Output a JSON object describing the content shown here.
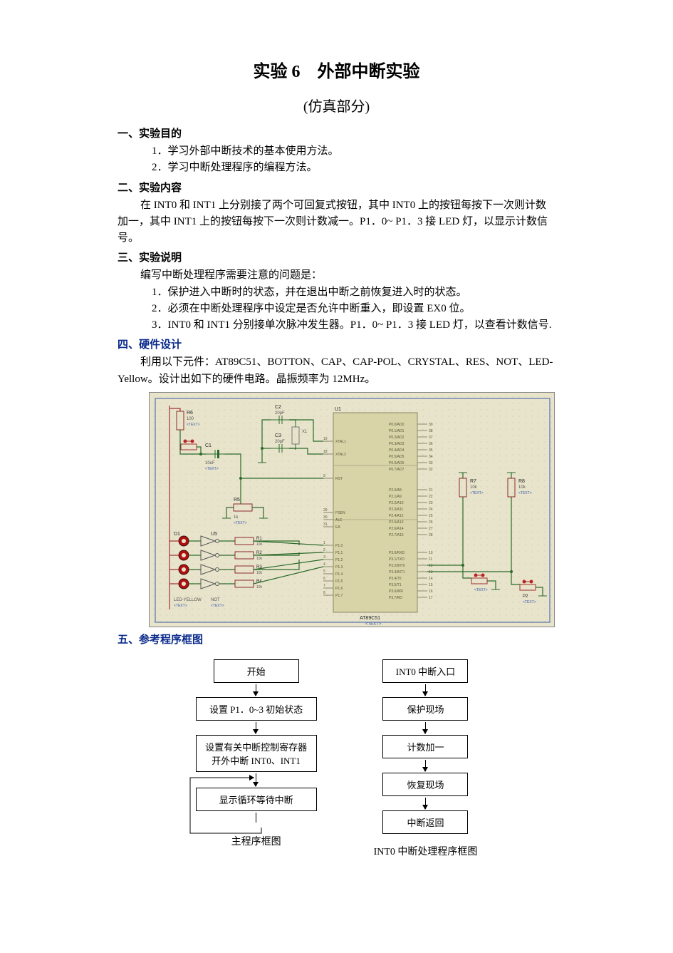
{
  "title": "实验 6　外部中断实验",
  "subtitle": "(仿真部分)",
  "sec1_head": "一、实验目的",
  "sec1_items": [
    "1．学习外部中断技术的基本使用方法。",
    "2．学习中断处理程序的编程方法。"
  ],
  "sec2_head": "二、实验内容",
  "sec2_body": "在 INT0 和 INT1 上分别接了两个可回复式按钮，其中 INT0 上的按钮每按下一次则计数加一，其中 INT1 上的按钮每按下一次则计数减一。P1．0~ P1．3 接 LED 灯，以显示计数信号。",
  "sec3_head": "三、实验说明",
  "sec3_lead": "编写中断处理程序需要注意的问题是：",
  "sec3_items": [
    "1．保护进入中断时的状态，并在退出中断之前恢复进入时的状态。",
    "2．必须在中断处理程序中设定是否允许中断重入，即设置 EX0 位。",
    "3．INT0 和 INT1 分别接单次脉冲发生器。P1．0~ P1．3 接 LED 灯，以查看计数信号."
  ],
  "sec4_head": "四、硬件设计",
  "sec4_body": "利用以下元件：AT89C51、BOTTON、CAP、CAP-POL、CRYSTAL、RES、NOT、LED-Yellow。设计出如下的硬件电路。晶振频率为 12MHz。",
  "sec5_head": "五、参考程序框图",
  "circuit": {
    "type": "schematic",
    "background_color": "#e8e4cc",
    "grid_dot_color": "#b8b49c",
    "wire_color": "#2a6a2a",
    "chip_color": "#d8d4a8",
    "chip_border": "#888866",
    "pin_text_color": "#5a5838",
    "ref_text_color": "#222222",
    "led_color": "#b01010",
    "button_color": "#c42020",
    "chip_label": "AT89C51",
    "u1_label": "U1",
    "crystal_label": "X1",
    "left_pins": [
      "XTAL1",
      "XTAL2",
      "RST",
      "PSEN",
      "ALE",
      "EA",
      "P1.0",
      "P1.1",
      "P1.2",
      "P1.3",
      "P1.4",
      "P1.5",
      "P1.6",
      "P1.7"
    ],
    "left_pin_nums": [
      "19",
      "18",
      "9",
      "29",
      "30",
      "31",
      "1",
      "2",
      "3",
      "4",
      "5",
      "6",
      "7",
      "8"
    ],
    "right_pins_top": [
      "P0.0/AD0",
      "P0.1/AD1",
      "P0.2/AD2",
      "P0.3/AD3",
      "P0.4/AD4",
      "P0.5/AD5",
      "P0.6/AD6",
      "P0.7/AD7"
    ],
    "right_nums_top": [
      "39",
      "38",
      "37",
      "36",
      "35",
      "34",
      "33",
      "32"
    ],
    "right_pins_mid": [
      "P2.0/A8",
      "P2.1/A9",
      "P2.2/A10",
      "P2.3/A11",
      "P2.4/A12",
      "P2.5/A13",
      "P2.6/A14",
      "P2.7/A15"
    ],
    "right_nums_mid": [
      "21",
      "22",
      "23",
      "24",
      "25",
      "26",
      "27",
      "28"
    ],
    "right_pins_bot": [
      "P3.0/RXD",
      "P3.1/TXD",
      "P3.2/INT0",
      "P3.3/INT1",
      "P3.4/T0",
      "P3.5/T1",
      "P3.6/WR",
      "P3.7/RD"
    ],
    "right_nums_bot": [
      "10",
      "11",
      "12",
      "13",
      "14",
      "15",
      "16",
      "17"
    ],
    "components": {
      "R6": "R6",
      "R5": "R5",
      "R1": "R1",
      "R2": "R2",
      "R3": "R3",
      "R4": "R4",
      "R7": "R7",
      "R8": "R8",
      "C1": "C1",
      "C2": "C2",
      "C3": "C3",
      "D1": "D1",
      "U5": "U5",
      "P2": "P2"
    },
    "values": {
      "R6": "100",
      "R5": "1k",
      "R7": "10k",
      "R8": "10k",
      "C2": "20pF",
      "C3": "20pF",
      "C1": "10uF",
      "R1": "10k",
      "R2": "10k",
      "R3": "10k",
      "R4": "10k"
    },
    "led_caption": "LED-YELLOW",
    "not_caption": "NOT",
    "text_placeholder": "<TEXT>",
    "pin_fontsize": 5,
    "ref_fontsize": 7
  },
  "flowchart_main": {
    "type": "flowchart",
    "nodes": [
      {
        "id": "m1",
        "label": "开始"
      },
      {
        "id": "m2",
        "label": "设置 P1．0~3 初始状态"
      },
      {
        "id": "m3",
        "label_l1": "设置有关中断控制寄存器",
        "label_l2": "开外中断 INT0、INT1"
      },
      {
        "id": "m4",
        "label": "显示循环等待中断"
      }
    ],
    "caption": "主程序框图",
    "box_border": "#000000",
    "box_bg": "#ffffff",
    "arrow_color": "#000000",
    "font_size": 13
  },
  "flowchart_int0": {
    "type": "flowchart",
    "nodes": [
      {
        "id": "i1",
        "label": "INT0 中断入口"
      },
      {
        "id": "i2",
        "label": "保护现场"
      },
      {
        "id": "i3",
        "label": "计数加一"
      },
      {
        "id": "i4",
        "label": "恢复现场"
      },
      {
        "id": "i5",
        "label": "中断返回"
      }
    ],
    "caption": "INT0 中断处理程序框图",
    "box_border": "#000000",
    "box_bg": "#ffffff",
    "arrow_color": "#000000",
    "font_size": 13
  }
}
